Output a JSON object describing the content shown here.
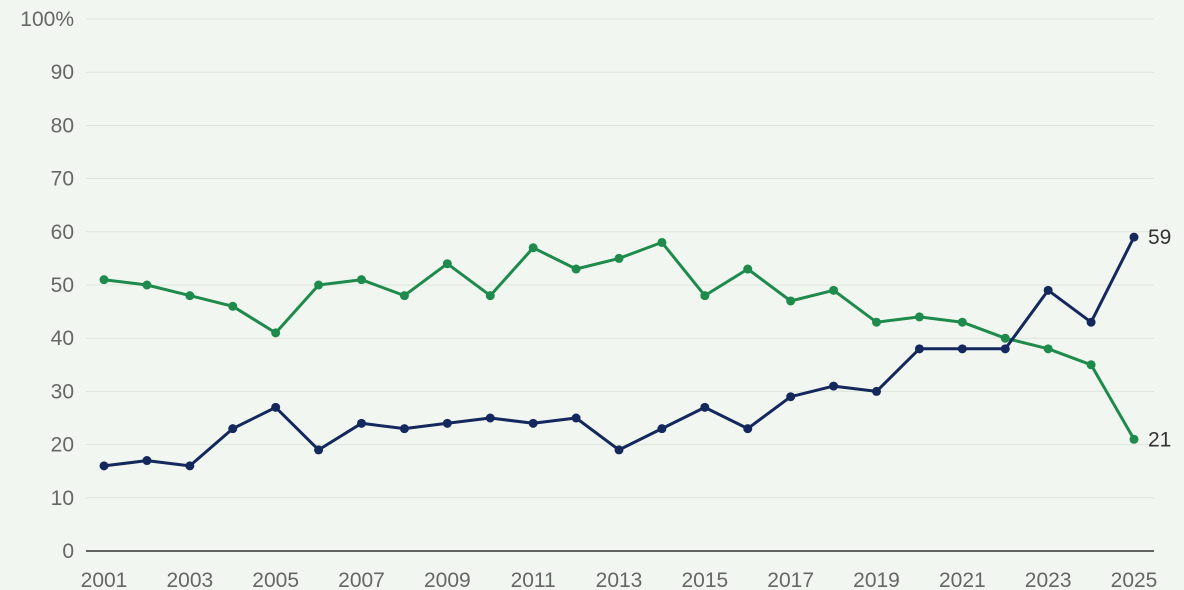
{
  "chart_data": {
    "type": "line",
    "x": [
      2001,
      2002,
      2003,
      2004,
      2005,
      2006,
      2007,
      2008,
      2009,
      2010,
      2011,
      2012,
      2013,
      2014,
      2015,
      2016,
      2017,
      2018,
      2019,
      2020,
      2021,
      2022,
      2023,
      2024,
      2025
    ],
    "x_tick_labels": [
      "2001",
      "2003",
      "2005",
      "2007",
      "2009",
      "2011",
      "2013",
      "2015",
      "2017",
      "2019",
      "2021",
      "2023",
      "2025"
    ],
    "y_tick_labels": [
      "0",
      "10",
      "20",
      "30",
      "40",
      "50",
      "60",
      "70",
      "80",
      "90",
      "100%"
    ],
    "ylim": [
      0,
      100
    ],
    "xlim": [
      2001,
      2025
    ],
    "grid": true,
    "legend": "none",
    "series": [
      {
        "color": "#1e8a4c",
        "values": [
          51,
          50,
          48,
          46,
          41,
          50,
          51,
          48,
          54,
          48,
          57,
          53,
          55,
          58,
          48,
          53,
          47,
          49,
          43,
          44,
          43,
          40,
          38,
          35,
          21
        ],
        "end_label": "21"
      },
      {
        "color": "#14285e",
        "values": [
          16,
          17,
          16,
          23,
          27,
          19,
          24,
          23,
          24,
          25,
          24,
          25,
          19,
          23,
          27,
          23,
          29,
          31,
          30,
          38,
          38,
          38,
          49,
          43,
          59
        ],
        "end_label": "59"
      }
    ],
    "colors": {
      "background": "#f1f7f0",
      "grid": "#dde6dc",
      "axis": "#333333",
      "tick_text": "#666666"
    }
  }
}
